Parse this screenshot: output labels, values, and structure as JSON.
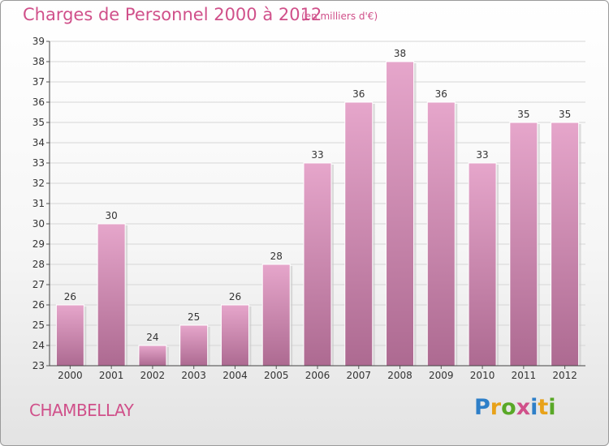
{
  "header": {
    "title": "Charges de Personnel 2000 à 2012",
    "unit": "(en milliers d'€)"
  },
  "footer": {
    "commune": "CHAMBELLAY",
    "logo_letters": [
      "P",
      "r",
      "o",
      "x",
      "i",
      "t",
      "i"
    ],
    "logo_colors": [
      "#2e7fc8",
      "#e8a21a",
      "#59a827",
      "#d0508a",
      "#2e7fc8",
      "#e8a21a",
      "#59a827"
    ]
  },
  "chart_data": {
    "type": "bar",
    "title": "Charges de Personnel 2000 à 2012",
    "subtitle": "(en milliers d'€)",
    "categories": [
      "2000",
      "2001",
      "2002",
      "2003",
      "2004",
      "2005",
      "2006",
      "2007",
      "2008",
      "2009",
      "2010",
      "2011",
      "2012"
    ],
    "values": [
      26,
      30,
      24,
      25,
      26,
      28,
      33,
      36,
      38,
      36,
      33,
      35,
      35
    ],
    "ylim": [
      23,
      39
    ],
    "yticks": [
      23,
      24,
      25,
      26,
      27,
      28,
      29,
      30,
      31,
      32,
      33,
      34,
      35,
      36,
      37,
      38,
      39
    ],
    "grid": true,
    "bar_color_top": "#e6a6cb",
    "bar_color_bottom": "#ad6a91"
  }
}
